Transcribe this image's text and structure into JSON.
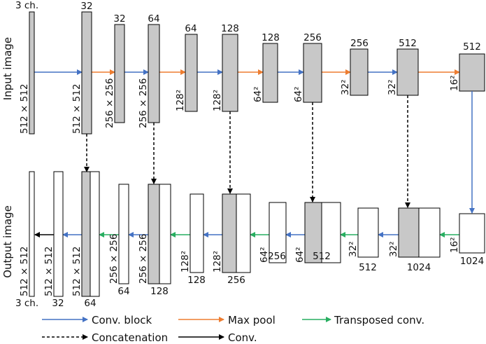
{
  "row_titles": {
    "input": "Input image",
    "output": "Output image"
  },
  "encoder": [
    {
      "channels": "3 ch.",
      "size": "512 × 512"
    },
    {
      "channels": "32",
      "size": "512 × 512"
    },
    {
      "channels": "32",
      "size": "256 × 256"
    },
    {
      "channels": "64",
      "size": "256 × 256"
    },
    {
      "channels": "64",
      "size": "128²"
    },
    {
      "channels": "128",
      "size": "128²"
    },
    {
      "channels": "128",
      "size": "64²"
    },
    {
      "channels": "256",
      "size": "64²"
    },
    {
      "channels": "256",
      "size": "32²"
    },
    {
      "channels": "512",
      "size": "32²"
    },
    {
      "channels": "512",
      "size": "16²"
    }
  ],
  "decoder": [
    {
      "channels": "3 ch.",
      "size": "512 × 512"
    },
    {
      "channels": "32",
      "size": "512 × 512"
    },
    {
      "channels": "64",
      "size": "512 × 512"
    },
    {
      "channels": "64",
      "size": "256 × 256"
    },
    {
      "channels": "128",
      "size": "256 × 256"
    },
    {
      "channels": "128",
      "size": "128²"
    },
    {
      "channels": "256",
      "size": "128²"
    },
    {
      "channels": "256",
      "size": "64²"
    },
    {
      "channels": "512",
      "size": "64²"
    },
    {
      "channels": "512",
      "size": "32²"
    },
    {
      "channels": "1024",
      "size": "32²"
    },
    {
      "channels": "1024",
      "size": "16²"
    }
  ],
  "legend": {
    "conv_block": "Conv. block",
    "max_pool": "Max pool",
    "transposed_conv": "Transposed conv.",
    "concatenation": "Concatenation",
    "conv": "Conv."
  },
  "colors": {
    "conv_block": "#4472c4",
    "max_pool": "#ed7d31",
    "transposed_conv": "#27ae60",
    "concatenation": "#000000",
    "conv": "#000000",
    "block_fill": "#c8c8c8"
  }
}
